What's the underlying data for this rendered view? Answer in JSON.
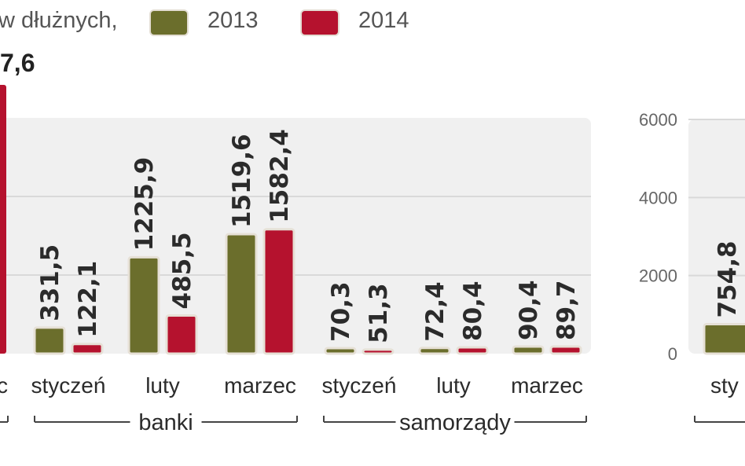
{
  "legend": {
    "unit_text": "w dłużnych,",
    "series": [
      {
        "name": "2013",
        "color": "#6b6e2c"
      },
      {
        "name": "2014",
        "color": "#b5122e"
      }
    ]
  },
  "top_value": "7,6",
  "colors": {
    "s2013": "#6b6e2c",
    "s2014": "#b5122e",
    "grid": "#d9d9d9",
    "panel": "#f0f0f0"
  },
  "chart_data": [
    {
      "type": "bar",
      "categories": [
        "styczeń",
        "luty",
        "marzec",
        "styczeń",
        "luty",
        "marzec"
      ],
      "groups": [
        {
          "name": "banki",
          "months": [
            "styczeń",
            "luty",
            "marzec"
          ]
        },
        {
          "name": "samorządy",
          "months": [
            "styczeń",
            "luty",
            "marzec"
          ]
        }
      ],
      "series": [
        {
          "name": "2013",
          "values": [
            331.5,
            1225.9,
            1519.6,
            70.3,
            72.4,
            90.4
          ],
          "labels": [
            "331,5",
            "1225,9",
            "1519,6",
            "70,3",
            "72,4",
            "90,4"
          ]
        },
        {
          "name": "2014",
          "values": [
            122.1,
            485.5,
            1582.4,
            51.3,
            80.4,
            89.7
          ],
          "labels": [
            "122,1",
            "485,5",
            "1582,4",
            "51,3",
            "80,4",
            "89,7"
          ]
        }
      ],
      "ylim": [
        0,
        3000
      ],
      "grid": true
    },
    {
      "type": "bar",
      "partial": true,
      "yticks": [
        0,
        2000,
        4000,
        6000
      ],
      "ylim": [
        0,
        6000
      ],
      "series": [
        {
          "name": "2013",
          "values": [
            754.8
          ],
          "labels": [
            "754,8"
          ]
        }
      ],
      "categories": [
        "sty"
      ]
    }
  ]
}
